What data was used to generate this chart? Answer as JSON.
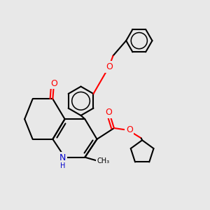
{
  "background_color": "#e8e8e8",
  "line_color": "#000000",
  "bond_width": 1.5,
  "atom_colors": {
    "O": "#ff0000",
    "N": "#0000cc"
  },
  "font_size": 9
}
